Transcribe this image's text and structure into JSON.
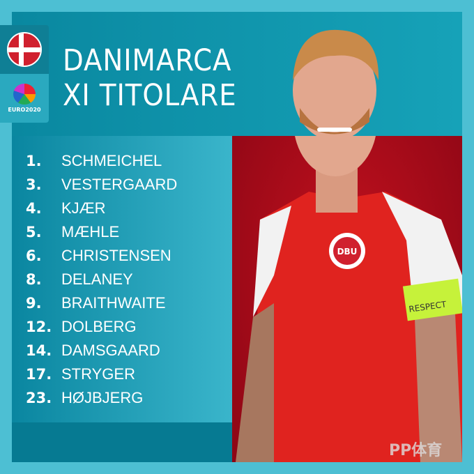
{
  "header": {
    "title_line1": "DANIMARCA",
    "title_line2": "XI TITOLARE"
  },
  "badges": {
    "flag_icon": "denmark-flag-icon",
    "logo_text": "EURO2020"
  },
  "lineup": [
    {
      "number": "1.",
      "name": "SCHMEICHEL"
    },
    {
      "number": "3.",
      "name": "VESTERGAARD"
    },
    {
      "number": "4.",
      "name": "KJÆR"
    },
    {
      "number": "5.",
      "name": "MÆHLE"
    },
    {
      "number": "6.",
      "name": "CHRISTENSEN"
    },
    {
      "number": "8.",
      "name": "DELANEY"
    },
    {
      "number": "9.",
      "name": "BRAITHWAITE"
    },
    {
      "number": "12.",
      "name": "DOLBERG"
    },
    {
      "number": "14.",
      "name": "DAMSGAARD"
    },
    {
      "number": "17.",
      "name": "STRYGER"
    },
    {
      "number": "23.",
      "name": "HØJBJERG"
    }
  ],
  "photo": {
    "armband_text": "RESPECT",
    "crest_text": "DBU"
  },
  "watermark": "PP体育",
  "colors": {
    "outer": "#4dbfd3",
    "panel": "#0a8aa2",
    "photo_bg": "#b00c1c",
    "shirt": "#e0231f"
  }
}
